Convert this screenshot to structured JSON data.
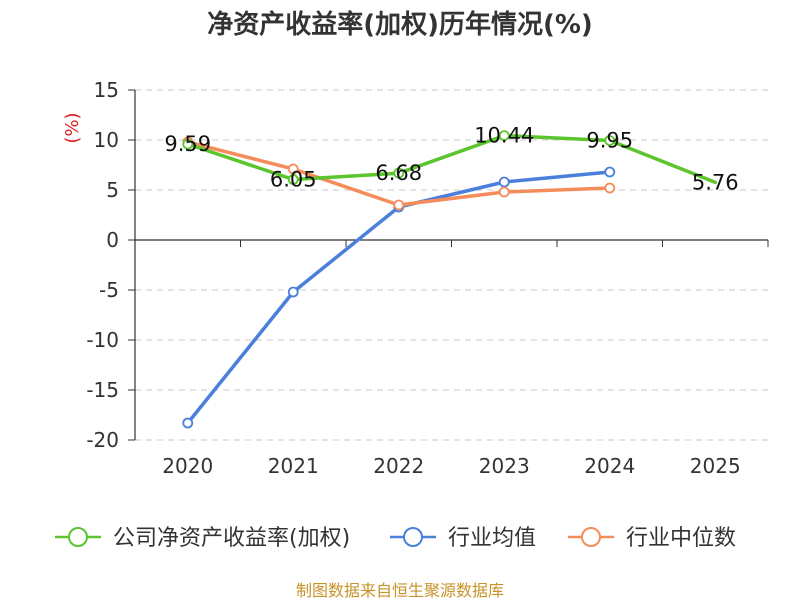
{
  "chart_data": {
    "type": "line",
    "title": "净资产收益率(加权)历年情况(%)",
    "ylabel": "(%)",
    "xlabel": "",
    "categories": [
      "2020",
      "2021",
      "2022",
      "2023",
      "2024",
      "2025"
    ],
    "ylim": [
      -20,
      15
    ],
    "yticks": [
      15,
      10,
      5,
      0,
      -5,
      -10,
      -15,
      -20
    ],
    "grid": true,
    "legend_position": "bottom",
    "series": [
      {
        "name": "公司净资产收益率(加权)",
        "color": "#5cc52e",
        "values": [
          9.59,
          6.05,
          6.68,
          10.44,
          9.95,
          5.76
        ],
        "labels": [
          "9.59",
          "6.05",
          "6.68",
          "10.44",
          "9.95",
          "5.76"
        ]
      },
      {
        "name": "行业均值",
        "color": "#4a7fdc",
        "values": [
          -18.3,
          -5.2,
          3.3,
          5.8,
          6.8,
          null
        ]
      },
      {
        "name": "行业中位数",
        "color": "#f58d5a",
        "values": [
          9.8,
          7.1,
          3.5,
          4.8,
          5.2,
          null
        ]
      }
    ],
    "source": "制图数据来自恒生聚源数据库"
  }
}
